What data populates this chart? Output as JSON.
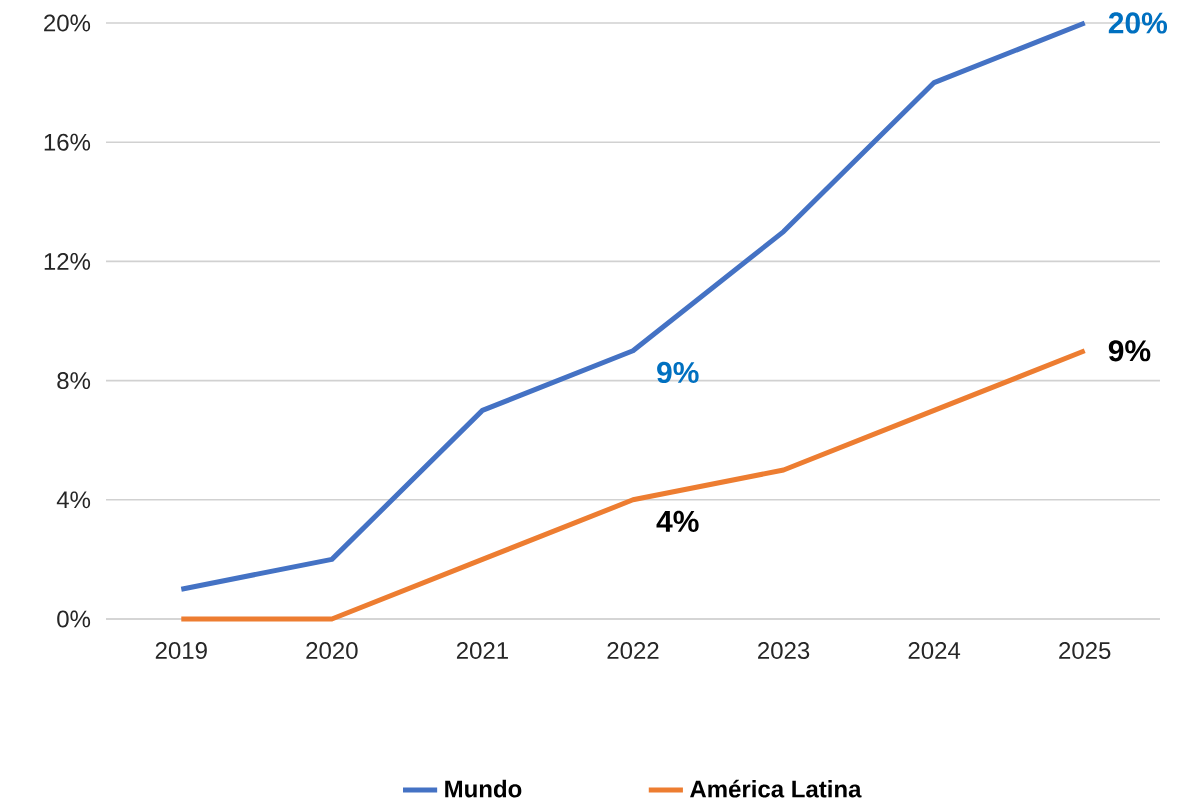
{
  "chart_data": {
    "type": "line",
    "categories": [
      "2019",
      "2020",
      "2021",
      "2022",
      "2023",
      "2024",
      "2025"
    ],
    "series": [
      {
        "name": "Mundo",
        "color": "#4472c4",
        "values": [
          1,
          2,
          7,
          9,
          13,
          18,
          20
        ],
        "value_labels": [
          null,
          null,
          null,
          "9%",
          null,
          null,
          "20%"
        ]
      },
      {
        "name": "América Latina",
        "color": "#ed7d31",
        "values": [
          0,
          0,
          2,
          4,
          5,
          7,
          9
        ],
        "value_labels": [
          null,
          null,
          null,
          "4%",
          null,
          null,
          "9%"
        ]
      }
    ],
    "ylim": [
      0,
      20
    ],
    "yticks": [
      {
        "value": 0,
        "label": "0%"
      },
      {
        "value": 4,
        "label": "4%"
      },
      {
        "value": 8,
        "label": "8%"
      },
      {
        "value": 12,
        "label": "12%"
      },
      {
        "value": 16,
        "label": "16%"
      },
      {
        "value": 20,
        "label": "20%"
      }
    ],
    "grid": "y",
    "legend": "bottom",
    "marker": "none",
    "line_style": "solid"
  }
}
